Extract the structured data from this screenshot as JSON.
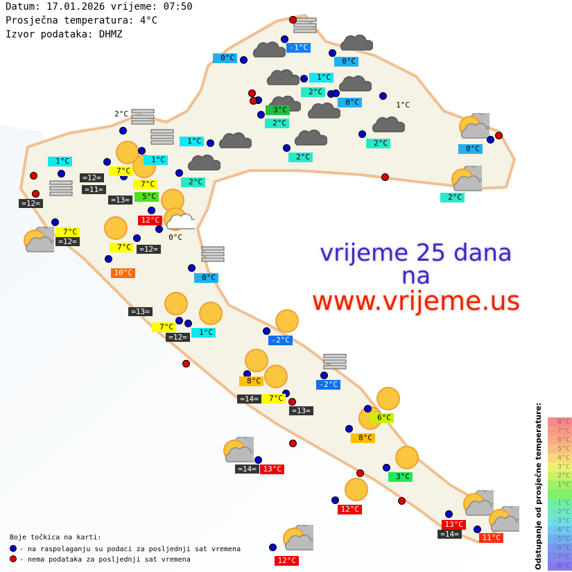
{
  "header": {
    "date_line": "Datum: 17.01.2026 vrijeme: 07:50",
    "avg_temp_line": "Prosječna temperatura: 4°C",
    "source_line": "Izvor podataka: DHMZ"
  },
  "promo": {
    "line1": "vrijeme 25 dana",
    "line2": "na",
    "line3": "www.vrijeme.us"
  },
  "colors": {
    "available_dot": "#0000cc",
    "unavailable_dot": "#dd0000",
    "sea_label_bg": "#333333"
  },
  "stations": [
    {
      "temp": "-1°C",
      "bg": "#1080f0",
      "fg": "#ffffff"
    },
    {
      "temp": "0°C",
      "bg": "#20b0f0",
      "fg": "#000000"
    },
    {
      "temp": "0°C",
      "bg": "#20b0f0",
      "fg": "#000000"
    },
    {
      "temp": "1°C",
      "bg": "#10e8f0",
      "fg": "#000000"
    },
    {
      "temp": "2°C",
      "bg": "#28e8c8",
      "fg": "#000000"
    },
    {
      "temp": "0°C",
      "bg": "#20b0f0",
      "fg": "#000000"
    },
    {
      "temp": "3°C",
      "bg": "#20c040",
      "fg": "#000000"
    },
    {
      "temp": "2°C",
      "bg": "#28e8c8",
      "fg": "#000000"
    },
    {
      "temp": "1°C",
      "bg": "transparent",
      "fg": "#000000"
    },
    {
      "temp": "2°C",
      "bg": "#28e8c8",
      "fg": "#000000"
    },
    {
      "temp": "2°C",
      "bg": "#28e8c8",
      "fg": "#000000"
    },
    {
      "temp": "1°C",
      "bg": "#10e8f0",
      "fg": "#000000"
    },
    {
      "temp": "2°C",
      "bg": "#28e8c8",
      "fg": "#000000"
    },
    {
      "temp": "1°C",
      "bg": "#10e8f0",
      "fg": "#000000"
    },
    {
      "temp": "2°C",
      "bg": "transparent",
      "fg": "#000000"
    },
    {
      "temp": "1°C",
      "bg": "#10e8f0",
      "fg": "#000000"
    },
    {
      "temp": "7°C",
      "bg": "#ffff00",
      "fg": "#000000"
    },
    {
      "temp": "7°C",
      "bg": "#ffff00",
      "fg": "#000000"
    },
    {
      "temp": "5°C",
      "bg": "#50e020",
      "fg": "#000000"
    },
    {
      "temp": "12°C",
      "bg": "#f00000",
      "fg": "#ffffff"
    },
    {
      "temp": "0°C",
      "bg": "transparent",
      "fg": "#000000"
    },
    {
      "temp": "7°C",
      "bg": "#ffff00",
      "fg": "#000000"
    },
    {
      "temp": "7°C",
      "bg": "#ffff00",
      "fg": "#000000"
    },
    {
      "temp": "10°C",
      "bg": "#ff6a00",
      "fg": "#ffffff"
    },
    {
      "temp": "0°C",
      "bg": "#20b0f0",
      "fg": "#000000"
    },
    {
      "temp": "7°C",
      "bg": "#ffff00",
      "fg": "#000000"
    },
    {
      "temp": "1°C",
      "bg": "#10e8f0",
      "fg": "#000000"
    },
    {
      "temp": "-2°C",
      "bg": "#1070f0",
      "fg": "#ffffff"
    },
    {
      "temp": "8°C",
      "bg": "#ffbe00",
      "fg": "#000000"
    },
    {
      "temp": "-2°C",
      "bg": "#1070f0",
      "fg": "#ffffff"
    },
    {
      "temp": "7°C",
      "bg": "#ffff00",
      "fg": "#000000"
    },
    {
      "temp": "6°C",
      "bg": "#c8f000",
      "fg": "#000000"
    },
    {
      "temp": "8°C",
      "bg": "#ffbe00",
      "fg": "#000000"
    },
    {
      "temp": "3°C",
      "bg": "#20e860",
      "fg": "#000000"
    },
    {
      "temp": "13°C",
      "bg": "#f00000",
      "fg": "#ffffff"
    },
    {
      "temp": "12°C",
      "bg": "#f00000",
      "fg": "#ffffff"
    },
    {
      "temp": "13°C",
      "bg": "#f00000",
      "fg": "#ffffff"
    },
    {
      "temp": "11°C",
      "bg": "#ff3010",
      "fg": "#ffffff"
    },
    {
      "temp": "12°C",
      "bg": "#f00000",
      "fg": "#ffffff"
    },
    {
      "temp": "0°C",
      "bg": "#20b0f0",
      "fg": "#000000"
    },
    {
      "temp": "2°C",
      "bg": "#28e8c8",
      "fg": "#000000"
    }
  ],
  "sea_temps": [
    "=12=",
    "=11=",
    "=13=",
    "=12=",
    "=12=",
    "=12=",
    "=13=",
    "=12=",
    "=14=",
    "=13=",
    "=14=",
    "=14="
  ],
  "dots": [
    "available",
    "available",
    "available",
    "available",
    "available",
    "available",
    "available",
    "available",
    "available",
    "available",
    "available",
    "available",
    "available",
    "available",
    "available",
    "available",
    "available",
    "available",
    "available",
    "available",
    "available",
    "available",
    "available",
    "available",
    "available",
    "available",
    "available",
    "available",
    "available",
    "available",
    "available",
    "available",
    "available",
    "available",
    "available",
    "available",
    "available",
    "available",
    "available",
    "unavailable",
    "unavailable",
    "unavailable",
    "unavailable",
    "unavailable",
    "unavailable",
    "unavailable",
    "unavailable",
    "unavailable",
    "unavailable",
    "unavailable",
    "unavailable"
  ],
  "weather_icons": [
    "sun",
    "sun",
    "sun",
    "sun-cloud-white",
    "sun",
    "sun",
    "sun",
    "sun",
    "sun",
    "sun",
    "sun",
    "sun",
    "sun",
    "sun",
    "sun-cloud",
    "sun-cloud",
    "sun-cloud",
    "sun-cloud",
    "sun-cloud",
    "sun-cloud",
    "sun-cloud",
    "cloud",
    "cloud",
    "cloud",
    "cloud",
    "cloud",
    "cloud",
    "cloud",
    "cloud",
    "cloud",
    "cloud",
    "fog",
    "fog",
    "fog",
    "fog",
    "fog",
    "fog"
  ],
  "legend": {
    "title": "Boje točkica na karti:",
    "available": "- na raspolaganju su podaci za posljednji sat vremena",
    "unavailable": "- nema podataka za posljednji sat vremena"
  },
  "deviation_scale": {
    "title": "Odstupanje od prosječne temperature:",
    "steps": [
      {
        "label": "8°C",
        "color": "#f88888"
      },
      {
        "label": "7°C",
        "color": "#f89a88"
      },
      {
        "label": "6°C",
        "color": "#f8aa80"
      },
      {
        "label": "5°C",
        "color": "#f8c080"
      },
      {
        "label": "4°C",
        "color": "#f8d878"
      },
      {
        "label": "3°C",
        "color": "#f0f070"
      },
      {
        "label": "2°C",
        "color": "#c8f068"
      },
      {
        "label": "1°C",
        "color": "#a0f068"
      },
      {
        "label": "",
        "color": "#80f068"
      },
      {
        "label": "-1°C",
        "color": "#70f0a0"
      },
      {
        "label": "-2°C",
        "color": "#70e8c0"
      },
      {
        "label": "-3°C",
        "color": "#70e0e0"
      },
      {
        "label": "-4°C",
        "color": "#70c8f0"
      },
      {
        "label": "-5°C",
        "color": "#70b0f0"
      },
      {
        "label": "-6°C",
        "color": "#7898f0"
      },
      {
        "label": "-7°C",
        "color": "#8088f0"
      },
      {
        "label": "-8°C",
        "color": "#8878f0"
      }
    ]
  }
}
